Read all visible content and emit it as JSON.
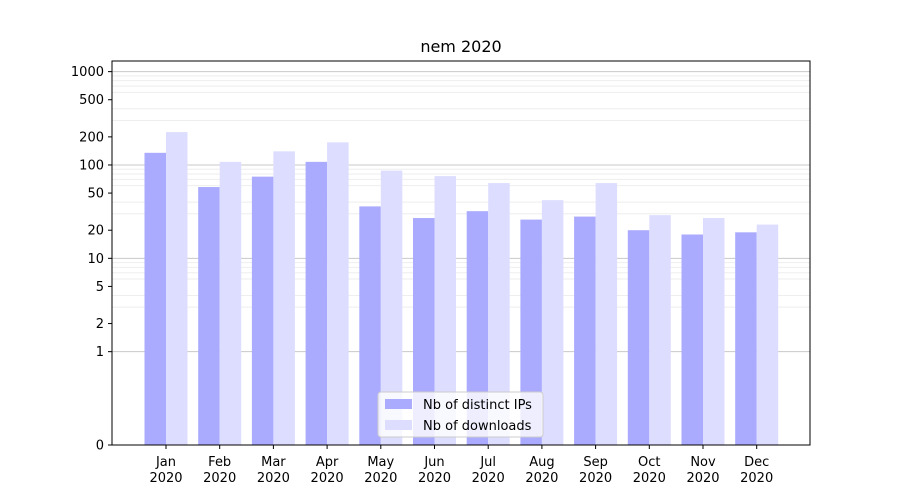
{
  "chart_data": {
    "type": "bar",
    "title": "nem 2020",
    "categories": [
      "Jan\n2020",
      "Feb\n2020",
      "Mar\n2020",
      "Apr\n2020",
      "May\n2020",
      "Jun\n2020",
      "Jul\n2020",
      "Aug\n2020",
      "Sep\n2020",
      "Oct\n2020",
      "Nov\n2020",
      "Dec\n2020"
    ],
    "series": [
      {
        "name": "Nb of distinct IPs",
        "color": "#aaaaff",
        "values": [
          135,
          58,
          75,
          108,
          36,
          27,
          32,
          26,
          28,
          20,
          18,
          19
        ]
      },
      {
        "name": "Nb of downloads",
        "color": "#ddddff",
        "values": [
          225,
          108,
          140,
          175,
          87,
          76,
          64,
          42,
          64,
          29,
          27,
          23
        ]
      }
    ],
    "y_scale": "symlog",
    "ylim": [
      0,
      1300
    ],
    "yticks": [
      0,
      1,
      2,
      5,
      10,
      20,
      50,
      100,
      200,
      500,
      1000
    ],
    "grid": true,
    "legend_position": "lower-center",
    "xlabel": "",
    "ylabel": ""
  }
}
